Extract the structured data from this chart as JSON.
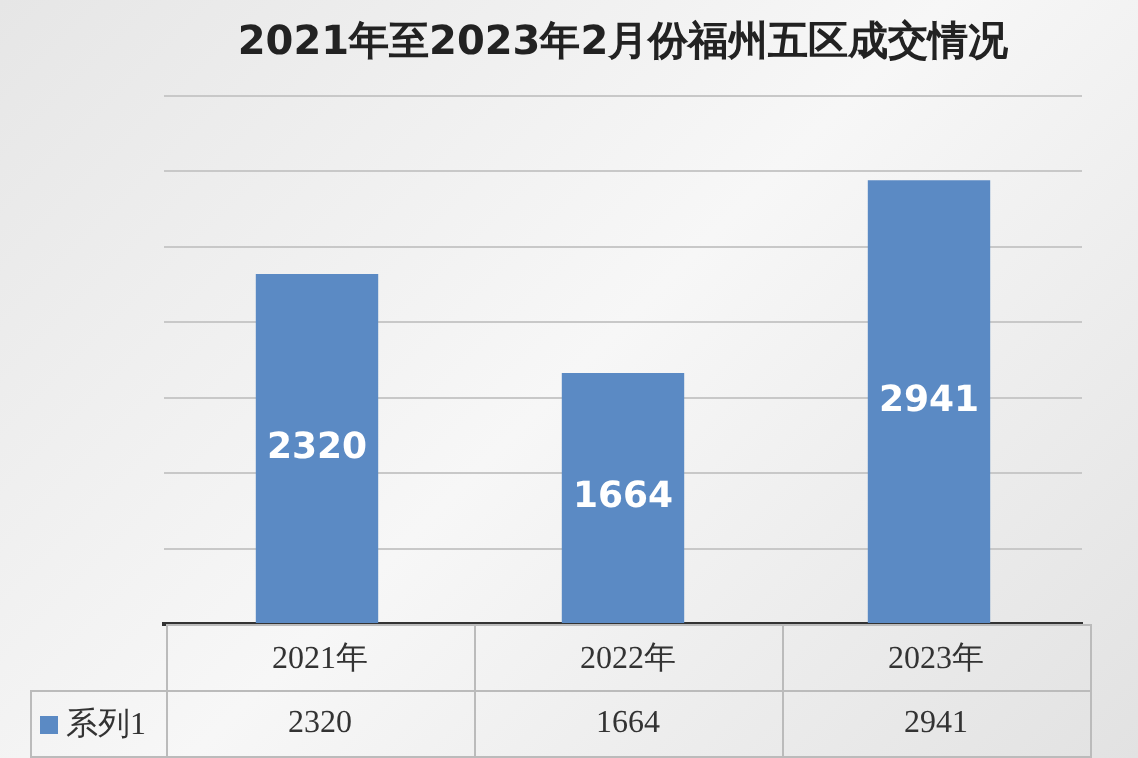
{
  "chart_data": {
    "type": "bar",
    "title": "2021年至2023年2月份福州五区成交情况",
    "categories": [
      "2021年",
      "2022年",
      "2023年"
    ],
    "series": [
      {
        "name": "系列1",
        "color": "#5b8ac4",
        "values": [
          2320,
          1664,
          2941
        ]
      }
    ],
    "annotations": [
      "2320",
      "1664",
      "2941"
    ],
    "ylim": [
      0,
      3500
    ],
    "yticks": [
      {
        "value": 0,
        "label": null
      },
      {
        "value": 500,
        "label": null
      },
      {
        "value": 1000,
        "label": null
      },
      {
        "value": 1500,
        "label": null
      },
      {
        "value": 2000,
        "label": null
      },
      {
        "value": 2500,
        "label": null
      },
      {
        "value": 3000,
        "label": null
      },
      {
        "value": 3500,
        "label": null
      }
    ],
    "tick_labels": "x",
    "grid": "y",
    "data_labels": true
  }
}
